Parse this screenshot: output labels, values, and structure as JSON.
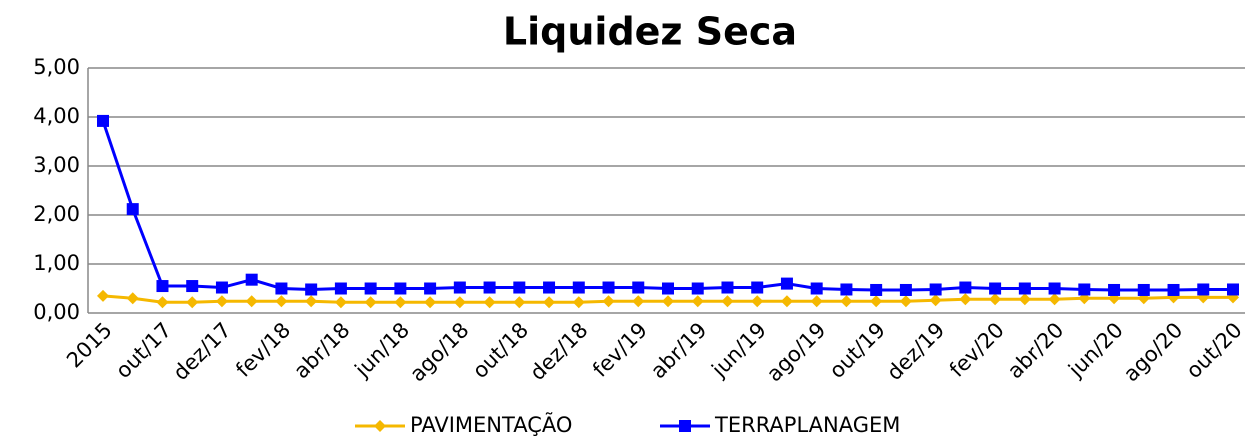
{
  "chart_data": {
    "type": "line",
    "title": "Liquidez Seca",
    "categories": [
      "2015",
      null,
      "out/17",
      null,
      "dez/17",
      null,
      "fev/18",
      null,
      "abr/18",
      null,
      "jun/18",
      null,
      "ago/18",
      null,
      "out/18",
      null,
      "dez/18",
      null,
      "fev/19",
      null,
      "abr/19",
      null,
      "jun/19",
      null,
      "ago/19",
      null,
      "out/19",
      null,
      "dez/19",
      null,
      "fev/20",
      null,
      "abr/20",
      null,
      "jun/20",
      null,
      "ago/20",
      null,
      "out/20"
    ],
    "series": [
      {
        "name": "PAVIMENTAÇÃO",
        "color": "#f5b800",
        "marker": "diamond",
        "values": [
          0.35,
          0.3,
          0.22,
          0.22,
          0.24,
          0.24,
          0.24,
          0.24,
          0.22,
          0.22,
          0.22,
          0.22,
          0.22,
          0.22,
          0.22,
          0.22,
          0.22,
          0.24,
          0.24,
          0.24,
          0.24,
          0.24,
          0.24,
          0.24,
          0.24,
          0.24,
          0.24,
          0.24,
          0.26,
          0.28,
          0.28,
          0.28,
          0.28,
          0.3,
          0.3,
          0.3,
          0.32,
          0.32,
          0.32
        ]
      },
      {
        "name": "TERRAPLANAGEM",
        "color": "#0000ff",
        "marker": "square",
        "values": [
          3.92,
          2.12,
          0.55,
          0.55,
          0.52,
          0.68,
          0.5,
          0.48,
          0.5,
          0.5,
          0.5,
          0.5,
          0.52,
          0.52,
          0.52,
          0.52,
          0.52,
          0.52,
          0.52,
          0.5,
          0.5,
          0.52,
          0.52,
          0.6,
          0.5,
          0.48,
          0.47,
          0.47,
          0.48,
          0.52,
          0.5,
          0.5,
          0.5,
          0.48,
          0.47,
          0.47,
          0.47,
          0.48,
          0.48
        ]
      }
    ],
    "ylim": [
      0,
      5
    ],
    "yticks": [
      {
        "value": 0,
        "label": "0,00"
      },
      {
        "value": 1,
        "label": "1,00"
      },
      {
        "value": 2,
        "label": "2,00"
      },
      {
        "value": 3,
        "label": "3,00"
      },
      {
        "value": 4,
        "label": "4,00"
      },
      {
        "value": 5,
        "label": "5,00"
      }
    ],
    "grid": true,
    "legend": "bottom"
  }
}
